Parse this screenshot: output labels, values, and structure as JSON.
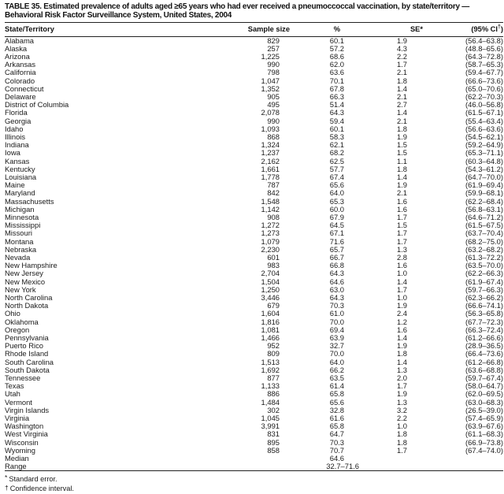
{
  "document": {
    "title_line1": "TABLE 35. Estimated prevalence of adults aged ≥65 years who had ever received a pneumoccoccal vaccination, by state/territory —",
    "title_line2": "Behavioral Risk Factor Surveillance System, United States, 2004"
  },
  "table": {
    "columns": [
      "State/Territory",
      "Sample size",
      "%",
      "SE*",
      "(95% CI†)"
    ],
    "rows": [
      {
        "state": "Alabama",
        "sample": "829",
        "pct": "60.1",
        "se": "1.9",
        "ci": "(56.4–63.8)"
      },
      {
        "state": "Alaska",
        "sample": "257",
        "pct": "57.2",
        "se": "4.3",
        "ci": "(48.8–65.6)"
      },
      {
        "state": "Arizona",
        "sample": "1,225",
        "pct": "68.6",
        "se": "2.2",
        "ci": "(64.3–72.8)"
      },
      {
        "state": "Arkansas",
        "sample": "990",
        "pct": "62.0",
        "se": "1.7",
        "ci": "(58.7–65.3)"
      },
      {
        "state": "California",
        "sample": "798",
        "pct": "63.6",
        "se": "2.1",
        "ci": "(59.4–67.7)"
      },
      {
        "state": "Colorado",
        "sample": "1,047",
        "pct": "70.1",
        "se": "1.8",
        "ci": "(66.6–73.6)"
      },
      {
        "state": "Connecticut",
        "sample": "1,352",
        "pct": "67.8",
        "se": "1.4",
        "ci": "(65.0–70.6)"
      },
      {
        "state": "Delaware",
        "sample": "905",
        "pct": "66.3",
        "se": "2.1",
        "ci": "(62.2–70.3)"
      },
      {
        "state": "District of Columbia",
        "sample": "495",
        "pct": "51.4",
        "se": "2.7",
        "ci": "(46.0–56.8)"
      },
      {
        "state": "Florida",
        "sample": "2,078",
        "pct": "64.3",
        "se": "1.4",
        "ci": "(61.5–67.1)"
      },
      {
        "state": "Georgia",
        "sample": "990",
        "pct": "59.4",
        "se": "2.1",
        "ci": "(55.4–63.4)"
      },
      {
        "state": "Idaho",
        "sample": "1,093",
        "pct": "60.1",
        "se": "1.8",
        "ci": "(56.6–63.6)"
      },
      {
        "state": "Illinois",
        "sample": "868",
        "pct": "58.3",
        "se": "1.9",
        "ci": "(54.5–62.1)"
      },
      {
        "state": "Indiana",
        "sample": "1,324",
        "pct": "62.1",
        "se": "1.5",
        "ci": "(59.2–64.9)"
      },
      {
        "state": "Iowa",
        "sample": "1,237",
        "pct": "68.2",
        "se": "1.5",
        "ci": "(65.3–71.1)"
      },
      {
        "state": "Kansas",
        "sample": "2,162",
        "pct": "62.5",
        "se": "1.1",
        "ci": "(60.3–64.8)"
      },
      {
        "state": "Kentucky",
        "sample": "1,661",
        "pct": "57.7",
        "se": "1.8",
        "ci": "(54.3–61.2)"
      },
      {
        "state": "Louisiana",
        "sample": "1,778",
        "pct": "67.4",
        "se": "1.4",
        "ci": "(64.7–70.0)"
      },
      {
        "state": "Maine",
        "sample": "787",
        "pct": "65.6",
        "se": "1.9",
        "ci": "(61.9–69.4)"
      },
      {
        "state": "Maryland",
        "sample": "842",
        "pct": "64.0",
        "se": "2.1",
        "ci": "(59.9–68.1)"
      },
      {
        "state": "Massachusetts",
        "sample": "1,548",
        "pct": "65.3",
        "se": "1.6",
        "ci": "(62.2–68.4)"
      },
      {
        "state": "Michigan",
        "sample": "1,142",
        "pct": "60.0",
        "se": "1.6",
        "ci": "(56.8–63.1)"
      },
      {
        "state": "Minnesota",
        "sample": "908",
        "pct": "67.9",
        "se": "1.7",
        "ci": "(64.6–71.2)"
      },
      {
        "state": "Mississippi",
        "sample": "1,272",
        "pct": "64.5",
        "se": "1.5",
        "ci": "(61.5–67.5)"
      },
      {
        "state": "Missouri",
        "sample": "1,273",
        "pct": "67.1",
        "se": "1.7",
        "ci": "(63.7–70.4)"
      },
      {
        "state": "Montana",
        "sample": "1,079",
        "pct": "71.6",
        "se": "1.7",
        "ci": "(68.2–75.0)"
      },
      {
        "state": "Nebraska",
        "sample": "2,230",
        "pct": "65.7",
        "se": "1.3",
        "ci": "(63.2–68.2)"
      },
      {
        "state": "Nevada",
        "sample": "601",
        "pct": "66.7",
        "se": "2.8",
        "ci": "(61.3–72.2)"
      },
      {
        "state": "New Hampshire",
        "sample": "983",
        "pct": "66.8",
        "se": "1.6",
        "ci": "(63.5–70.0)"
      },
      {
        "state": "New Jersey",
        "sample": "2,704",
        "pct": "64.3",
        "se": "1.0",
        "ci": "(62.2–66.3)"
      },
      {
        "state": "New Mexico",
        "sample": "1,504",
        "pct": "64.6",
        "se": "1.4",
        "ci": "(61.9–67.4)"
      },
      {
        "state": "New York",
        "sample": "1,250",
        "pct": "63.0",
        "se": "1.7",
        "ci": "(59.7–66.3)"
      },
      {
        "state": "North Carolina",
        "sample": "3,446",
        "pct": "64.3",
        "se": "1.0",
        "ci": "(62.3–66.2)"
      },
      {
        "state": "North Dakota",
        "sample": "679",
        "pct": "70.3",
        "se": "1.9",
        "ci": "(66.6–74.1)"
      },
      {
        "state": "Ohio",
        "sample": "1,604",
        "pct": "61.0",
        "se": "2.4",
        "ci": "(56.3–65.8)"
      },
      {
        "state": "Oklahoma",
        "sample": "1,816",
        "pct": "70.0",
        "se": "1.2",
        "ci": "(67.7–72.3)"
      },
      {
        "state": "Oregon",
        "sample": "1,081",
        "pct": "69.4",
        "se": "1.6",
        "ci": "(66.3–72.4)"
      },
      {
        "state": "Pennsylvania",
        "sample": "1,466",
        "pct": "63.9",
        "se": "1.4",
        "ci": "(61.2–66.6)"
      },
      {
        "state": "Puerto Rico",
        "sample": "952",
        "pct": "32.7",
        "se": "1.9",
        "ci": "(28.9–36.5)"
      },
      {
        "state": "Rhode Island",
        "sample": "809",
        "pct": "70.0",
        "se": "1.8",
        "ci": "(66.4–73.6)"
      },
      {
        "state": "South Carolina",
        "sample": "1,513",
        "pct": "64.0",
        "se": "1.4",
        "ci": "(61.2–66.8)"
      },
      {
        "state": "South Dakota",
        "sample": "1,692",
        "pct": "66.2",
        "se": "1.3",
        "ci": "(63.6–68.8)"
      },
      {
        "state": "Tennessee",
        "sample": "877",
        "pct": "63.5",
        "se": "2.0",
        "ci": "(59.7–67.4)"
      },
      {
        "state": "Texas",
        "sample": "1,133",
        "pct": "61.4",
        "se": "1.7",
        "ci": "(58.0–64.7)"
      },
      {
        "state": "Utah",
        "sample": "886",
        "pct": "65.8",
        "se": "1.9",
        "ci": "(62.0–69.5)"
      },
      {
        "state": "Vermont",
        "sample": "1,484",
        "pct": "65.6",
        "se": "1.3",
        "ci": "(63.0–68.3)"
      },
      {
        "state": "Virgin Islands",
        "sample": "302",
        "pct": "32.8",
        "se": "3.2",
        "ci": "(26.5–39.0)"
      },
      {
        "state": "Virginia",
        "sample": "1,045",
        "pct": "61.6",
        "se": "2.2",
        "ci": "(57.4–65.9)"
      },
      {
        "state": "Washington",
        "sample": "3,991",
        "pct": "65.8",
        "se": "1.0",
        "ci": "(63.9–67.6)"
      },
      {
        "state": "West Virginia",
        "sample": "831",
        "pct": "64.7",
        "se": "1.8",
        "ci": "(61.1–68.3)"
      },
      {
        "state": "Wisconsin",
        "sample": "895",
        "pct": "70.3",
        "se": "1.8",
        "ci": "(66.9–73.8)"
      },
      {
        "state": "Wyoming",
        "sample": "858",
        "pct": "70.7",
        "se": "1.7",
        "ci": "(67.4–74.0)"
      },
      {
        "state": "Median",
        "sample": "",
        "pct": "64.6",
        "se": "",
        "ci": ""
      },
      {
        "state": "Range",
        "sample": "",
        "pct": "32.7–71.6",
        "se": "",
        "ci": ""
      }
    ]
  },
  "footnotes": [
    {
      "symbol": "*",
      "text": "Standard error."
    },
    {
      "symbol": "†",
      "text": "Confidence interval."
    }
  ]
}
